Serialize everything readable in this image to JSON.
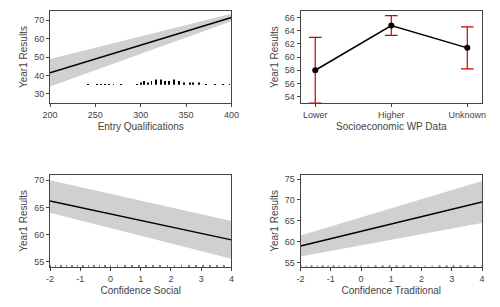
{
  "chart_data": [
    {
      "type": "line",
      "x_label": "Entry Qualifications",
      "y_label": "Year1 Results",
      "x": [
        200,
        400
      ],
      "values": [
        41.5,
        71.5
      ],
      "color": "#000000",
      "band": {
        "upper": [
          49.0,
          73.5
        ],
        "lower": [
          34.0,
          69.5
        ],
        "color": "#d0d0d0"
      },
      "rug": {
        "x": [
          242,
          252,
          256,
          261,
          265,
          270,
          278,
          296,
          300,
          304,
          308,
          312,
          317,
          322,
          327,
          331,
          337,
          342,
          348,
          354,
          358,
          364,
          372,
          382,
          391,
          398
        ],
        "heights": [
          0.32,
          0.32,
          0.32,
          0.32,
          0.32,
          0.32,
          0.32,
          0.32,
          1.2,
          2.0,
          1.2,
          2.0,
          2.8,
          2.8,
          2.0,
          2.0,
          2.8,
          2.0,
          1.2,
          1.2,
          1.2,
          1.2,
          0.32,
          0.32,
          0.32,
          0.32
        ],
        "base": 35,
        "color": "black"
      },
      "xlim": [
        200,
        400
      ],
      "ylim": [
        25,
        75
      ],
      "xticks": [
        200,
        250,
        300,
        350,
        400
      ],
      "yticks": [
        30,
        40,
        50,
        60,
        70
      ],
      "grid": false
    },
    {
      "type": "line",
      "x_label": "Socioeconomic WP Data",
      "y_label": "Year1 Results",
      "categories": [
        "Lower",
        "Higher",
        "Unknown"
      ],
      "values": [
        58.0,
        64.8,
        61.4
      ],
      "color": "black",
      "marker": "circle",
      "errors": {
        "upper": [
          63.0,
          66.3,
          64.6
        ],
        "lower": [
          53.0,
          63.3,
          58.2
        ],
        "color": "#cc0000"
      },
      "ylim": [
        53,
        67
      ],
      "yticks": [
        54,
        56,
        58,
        60,
        62,
        64,
        66
      ],
      "grid": false
    },
    {
      "type": "line",
      "x_label": "Confidence Social",
      "y_label": "Year1 Results",
      "x": [
        -2,
        4
      ],
      "values": [
        66.2,
        59.0
      ],
      "color": "#000000",
      "band": {
        "upper": [
          70.0,
          62.5
        ],
        "lower": [
          64.0,
          55.5
        ],
        "color": "#d0d0d0"
      },
      "rug": {
        "x": [
          -2,
          -1.818182,
          -1.636364,
          -1.454545,
          -1.272727,
          -1.090909,
          -0.909091,
          -0.727273,
          -0.545455,
          -0.363636,
          -0.181818,
          0,
          0,
          0.235294,
          0.470588,
          0.705882,
          0.941176,
          1.176471,
          1.411765,
          1.647059,
          1.882353,
          2.117647,
          2.352941,
          2.588235,
          2.823529,
          3.058824,
          3.294118,
          3.529412,
          3.764706,
          4
        ],
        "height": 0.35,
        "base": 54,
        "color": "gray"
      },
      "xlim": [
        -2,
        4
      ],
      "ylim": [
        54,
        71
      ],
      "xticks": [
        -2,
        -1,
        0,
        1,
        2,
        3,
        4
      ],
      "yticks": [
        55,
        60,
        65,
        70
      ],
      "grid": false
    },
    {
      "type": "line",
      "x_label": "Confidence Traditional",
      "y_label": "Year1 Results",
      "x": [
        -2,
        4
      ],
      "values": [
        59.0,
        69.5
      ],
      "color": "#000000",
      "band": {
        "upper": [
          61.5,
          74.5
        ],
        "lower": [
          56.5,
          64.5
        ],
        "color": "#d0d0d0"
      },
      "rug": {
        "x": [
          -2,
          -1.818182,
          -1.636364,
          -1.454545,
          -1.272727,
          -1.090909,
          -0.909091,
          -0.727273,
          -0.545455,
          -0.363636,
          -0.181818,
          0,
          0,
          0.235294,
          0.470588,
          0.705882,
          0.941176,
          1.176471,
          1.411765,
          1.647059,
          1.882353,
          2.117647,
          2.352941,
          2.588235,
          2.823529,
          3.058824,
          3.294118,
          3.529412,
          3.764706,
          4
        ],
        "height": 0.4,
        "base": 54,
        "color": "gray"
      },
      "xlim": [
        -2,
        4
      ],
      "ylim": [
        54,
        76
      ],
      "xticks": [
        -2,
        -1,
        0,
        1,
        2,
        3,
        4
      ],
      "yticks": [
        55,
        60,
        65,
        70,
        75
      ],
      "grid": false
    }
  ]
}
